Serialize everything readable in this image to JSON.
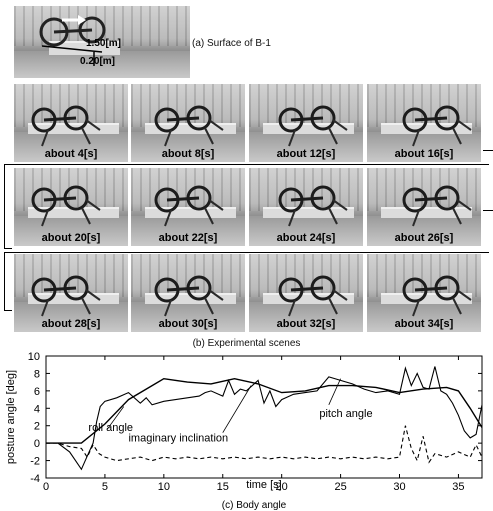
{
  "figure": {
    "panel_a": {
      "caption": "(a) Surface of B-1",
      "dim_upper": "1.50[m]",
      "dim_lower": "0.20[m]"
    },
    "panel_b": {
      "caption": "(b) Experimental scenes",
      "scenes": [
        "about 4[s]",
        "about 8[s]",
        "about 12[s]",
        "about 16[s]",
        "about 20[s]",
        "about 22[s]",
        "about 24[s]",
        "about 26[s]",
        "about 28[s]",
        "about 30[s]",
        "about 32[s]",
        "about 34[s]"
      ]
    },
    "panel_c": {
      "caption": "(c) Body angle"
    }
  },
  "chart_data": {
    "type": "line",
    "xlabel": "time [s]",
    "ylabel": "posture angle [deg]",
    "xlim": [
      0,
      37
    ],
    "ylim": [
      -4,
      10
    ],
    "xticks": [
      0,
      5,
      10,
      15,
      20,
      25,
      30,
      35
    ],
    "yticks": [
      -4,
      -2,
      0,
      2,
      4,
      6,
      8,
      10
    ],
    "series": [
      {
        "name": "pitch angle",
        "style": "solid",
        "x": [
          0,
          1,
          2,
          2.5,
          3,
          3.5,
          4,
          4.3,
          4.6,
          5,
          6,
          7,
          8,
          8.5,
          9,
          10,
          11,
          12,
          13,
          13.5,
          14,
          15,
          15.5,
          16,
          16.5,
          17,
          18,
          18.5,
          19,
          19.5,
          20,
          21,
          22,
          23,
          24,
          25,
          26,
          27,
          28,
          29,
          30,
          30.5,
          31,
          31.5,
          32,
          32.5,
          33,
          33.5,
          34,
          34.5,
          35,
          35.5,
          36,
          36.5,
          37
        ],
        "y": [
          0,
          0,
          -1,
          -2,
          -3,
          -1.5,
          0,
          2.5,
          4.2,
          4.8,
          5.2,
          5.8,
          4.6,
          5.2,
          4.4,
          4.8,
          5.0,
          5.2,
          5.4,
          5.8,
          6.0,
          5.4,
          7.2,
          5.6,
          6.2,
          6.0,
          7.2,
          4.6,
          6.0,
          4.2,
          5.0,
          5.6,
          5.8,
          6.0,
          7.6,
          7.2,
          6.8,
          6.2,
          5.8,
          6.0,
          5.6,
          8.6,
          6.6,
          8.0,
          6.4,
          6.2,
          8.8,
          6.0,
          5.6,
          4.6,
          3.2,
          1.4,
          0.6,
          1.0,
          4.4
        ]
      },
      {
        "name": "roll angle",
        "style": "dashed",
        "x": [
          0,
          1,
          2,
          3,
          3.5,
          4,
          4.5,
          5,
          6,
          7,
          8,
          9,
          10,
          11,
          12,
          13,
          14,
          15,
          16,
          17,
          18,
          19,
          20,
          21,
          22,
          23,
          24,
          25,
          26,
          27,
          28,
          29,
          30,
          30.5,
          31,
          31.5,
          32,
          32.5,
          33,
          34,
          35,
          36,
          36.5,
          37
        ],
        "y": [
          0,
          0,
          -0.4,
          -0.6,
          -1.6,
          -0.2,
          -1.2,
          -1.6,
          -2.0,
          -1.8,
          -1.6,
          -2.0,
          -1.6,
          -1.8,
          -1.6,
          -1.8,
          -1.6,
          -1.8,
          -1.6,
          -1.8,
          -1.6,
          -1.8,
          -1.6,
          -1.8,
          -1.6,
          -1.8,
          -1.6,
          -1.8,
          -1.6,
          -1.8,
          -1.6,
          -1.8,
          -1.6,
          2.0,
          -0.6,
          -2.0,
          0.8,
          -2.2,
          -1.2,
          -1.6,
          -1.0,
          -1.6,
          -0.2,
          -1.6
        ]
      },
      {
        "name": "imaginary inclination",
        "style": "solid",
        "x": [
          0,
          3,
          5,
          7,
          10,
          12,
          14,
          16,
          18,
          20,
          22,
          24,
          26,
          28,
          30,
          32,
          34,
          35,
          36,
          37
        ],
        "y": [
          0,
          0,
          2.2,
          5.0,
          7.4,
          7.0,
          6.8,
          7.4,
          6.8,
          5.8,
          6.0,
          6.6,
          6.6,
          6.4,
          5.8,
          6.2,
          6.4,
          6.0,
          4.0,
          1.8
        ]
      }
    ],
    "annotations": [
      "roll angle",
      "imaginary inclination",
      "pitch angle"
    ]
  }
}
